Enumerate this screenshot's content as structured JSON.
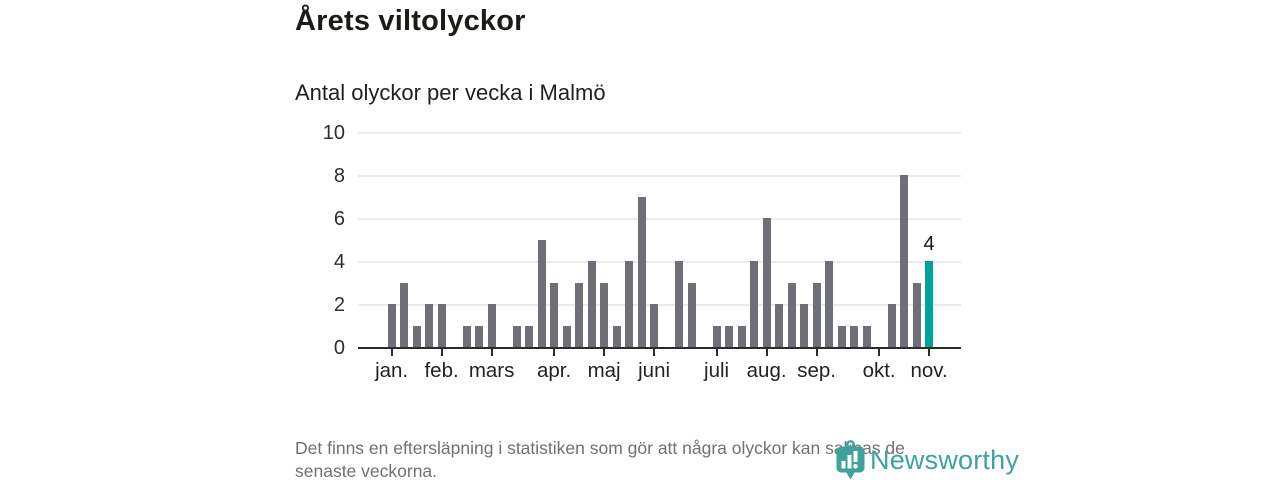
{
  "header": {
    "title": "Årets viltolyckor",
    "subtitle": "Antal olyckor per vecka i Malmö"
  },
  "chart_data": {
    "type": "bar",
    "title": "Årets viltolyckor",
    "subtitle": "Antal olyckor per vecka i Malmö",
    "x_description": "veckor (week 1 till 44)",
    "values": [
      2,
      3,
      1,
      2,
      2,
      0,
      1,
      1,
      2,
      0,
      1,
      1,
      5,
      3,
      1,
      3,
      4,
      3,
      1,
      4,
      7,
      2,
      0,
      4,
      3,
      0,
      1,
      1,
      1,
      4,
      6,
      2,
      3,
      2,
      3,
      4,
      1,
      1,
      1,
      0,
      2,
      8,
      3,
      4
    ],
    "month_ticks": [
      {
        "label": "jan.",
        "week": 1
      },
      {
        "label": "feb.",
        "week": 5
      },
      {
        "label": "mars",
        "week": 9
      },
      {
        "label": "apr.",
        "week": 14
      },
      {
        "label": "maj",
        "week": 18
      },
      {
        "label": "juni",
        "week": 22
      },
      {
        "label": "juli",
        "week": 27
      },
      {
        "label": "aug.",
        "week": 31
      },
      {
        "label": "sep.",
        "week": 35
      },
      {
        "label": "okt.",
        "week": 40
      },
      {
        "label": "nov.",
        "week": 44
      }
    ],
    "yticks": [
      0,
      2,
      4,
      6,
      8,
      10
    ],
    "ylim": [
      0,
      10
    ],
    "grid": true,
    "legend": false,
    "highlight_index": 43,
    "highlight_value_label": "4",
    "bar_color": "#6F6F78",
    "highlight_color": "#00A39C"
  },
  "footer": {
    "note_line1": "Det finns en eftersläpning i statistiken som gör att några olyckor kan saknas de",
    "note_line2": "senaste veckorna."
  },
  "logo": {
    "text": "Newsworthy",
    "icon": "newsworthy-pin-icon",
    "color": "#3FA29B"
  }
}
